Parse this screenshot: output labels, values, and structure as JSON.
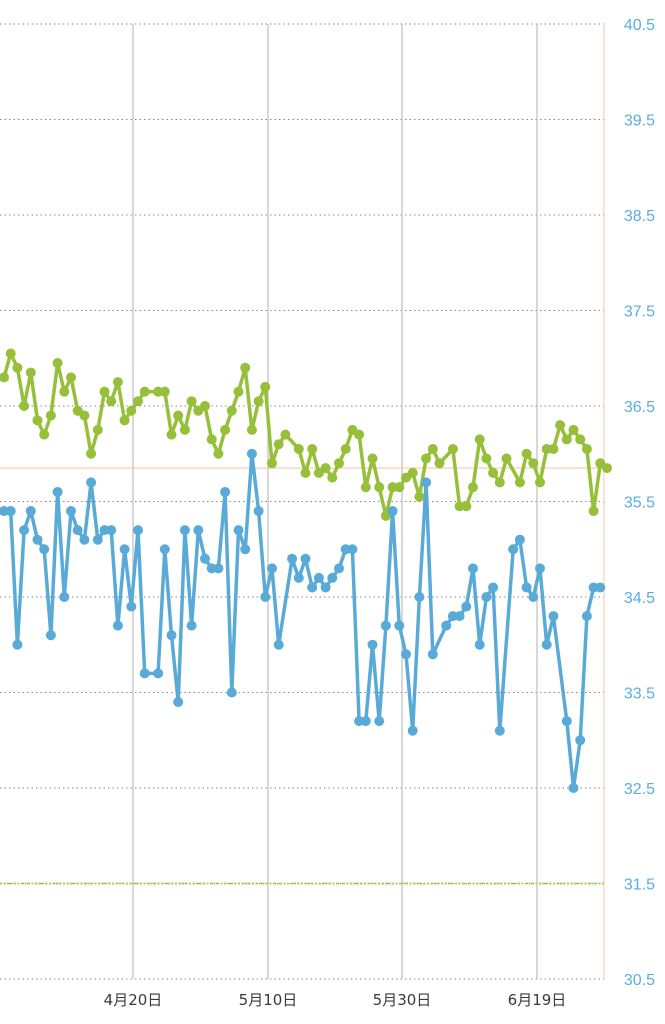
{
  "chart_data": {
    "type": "line",
    "ylim": [
      30.5,
      40.5
    ],
    "y_ticks": [
      "40.5",
      "39.5",
      "38.5",
      "37.5",
      "36.5",
      "35.5",
      "34.5",
      "33.5",
      "32.5",
      "31.5",
      "30.5"
    ],
    "x_ticks": [
      "4月20日",
      "5月10日",
      "5月30日",
      "6月19日"
    ],
    "reference_lines": [
      {
        "value": 35.85,
        "color": "#f5c9a8",
        "style": "solid"
      },
      {
        "value": 31.5,
        "color": "#a9cf57",
        "style": "dashed"
      }
    ],
    "grid": true,
    "legend": "none",
    "series": [
      {
        "color": "#96bf3a",
        "values": [
          [
            0,
            36.8
          ],
          [
            1,
            37.05
          ],
          [
            2,
            36.9
          ],
          [
            3,
            36.5
          ],
          [
            4,
            36.85
          ],
          [
            5,
            36.35
          ],
          [
            6,
            36.2
          ],
          [
            7,
            36.4
          ],
          [
            8,
            36.95
          ],
          [
            9,
            36.65
          ],
          [
            10,
            36.8
          ],
          [
            11,
            36.45
          ],
          [
            12,
            36.4
          ],
          [
            13,
            36.0
          ],
          [
            14,
            36.25
          ],
          [
            15,
            36.65
          ],
          [
            16,
            36.55
          ],
          [
            17,
            36.75
          ],
          [
            18,
            36.35
          ],
          [
            19,
            36.45
          ],
          [
            20,
            36.55
          ],
          [
            21,
            36.65
          ],
          [
            23,
            36.65
          ],
          [
            24,
            36.65
          ],
          [
            25,
            36.2
          ],
          [
            26,
            36.4
          ],
          [
            27,
            36.25
          ],
          [
            28,
            36.55
          ],
          [
            29,
            36.45
          ],
          [
            30,
            36.5
          ],
          [
            31,
            36.15
          ],
          [
            32,
            36.0
          ],
          [
            33,
            36.25
          ],
          [
            34,
            36.45
          ],
          [
            35,
            36.65
          ],
          [
            36,
            36.9
          ],
          [
            37,
            36.25
          ],
          [
            38,
            36.55
          ],
          [
            39,
            36.7
          ],
          [
            40,
            35.9
          ],
          [
            41,
            36.1
          ],
          [
            42,
            36.2
          ],
          [
            44,
            36.05
          ],
          [
            45,
            35.8
          ],
          [
            46,
            36.05
          ],
          [
            47,
            35.8
          ],
          [
            48,
            35.85
          ],
          [
            49,
            35.75
          ],
          [
            50,
            35.9
          ],
          [
            51,
            36.05
          ],
          [
            52,
            36.25
          ],
          [
            53,
            36.2
          ],
          [
            54,
            35.65
          ],
          [
            55,
            35.95
          ],
          [
            56,
            35.65
          ],
          [
            57,
            35.35
          ],
          [
            58,
            35.65
          ],
          [
            59,
            35.65
          ],
          [
            60,
            35.75
          ],
          [
            61,
            35.8
          ],
          [
            62,
            35.55
          ],
          [
            63,
            35.95
          ],
          [
            64,
            36.05
          ],
          [
            65,
            35.9
          ],
          [
            67,
            36.05
          ],
          [
            68,
            35.45
          ],
          [
            69,
            35.45
          ],
          [
            70,
            35.65
          ],
          [
            71,
            36.15
          ],
          [
            72,
            35.95
          ],
          [
            73,
            35.8
          ],
          [
            74,
            35.7
          ],
          [
            75,
            35.95
          ],
          [
            77,
            35.7
          ],
          [
            78,
            36.0
          ],
          [
            79,
            35.9
          ],
          [
            80,
            35.7
          ],
          [
            81,
            36.05
          ],
          [
            82,
            36.05
          ],
          [
            83,
            36.3
          ],
          [
            84,
            36.15
          ],
          [
            85,
            36.25
          ],
          [
            86,
            36.15
          ],
          [
            87,
            36.05
          ],
          [
            88,
            35.4
          ],
          [
            89,
            35.9
          ],
          [
            90,
            35.85
          ]
        ]
      },
      {
        "color": "#5aaad8",
        "values": [
          [
            0,
            35.4
          ],
          [
            1,
            35.4
          ],
          [
            2,
            34.0
          ],
          [
            3,
            35.2
          ],
          [
            4,
            35.4
          ],
          [
            5,
            35.1
          ],
          [
            6,
            35.0
          ],
          [
            7,
            34.1
          ],
          [
            8,
            35.6
          ],
          [
            9,
            34.5
          ],
          [
            10,
            35.4
          ],
          [
            11,
            35.2
          ],
          [
            12,
            35.1
          ],
          [
            13,
            35.7
          ],
          [
            14,
            35.1
          ],
          [
            15,
            35.2
          ],
          [
            16,
            35.2
          ],
          [
            17,
            34.2
          ],
          [
            18,
            35.0
          ],
          [
            19,
            34.4
          ],
          [
            20,
            35.2
          ],
          [
            21,
            33.7
          ],
          [
            23,
            33.7
          ],
          [
            24,
            35.0
          ],
          [
            25,
            34.1
          ],
          [
            26,
            33.4
          ],
          [
            27,
            35.2
          ],
          [
            28,
            34.2
          ],
          [
            29,
            35.2
          ],
          [
            30,
            34.9
          ],
          [
            31,
            34.8
          ],
          [
            32,
            34.8
          ],
          [
            33,
            35.6
          ],
          [
            34,
            33.5
          ],
          [
            35,
            35.2
          ],
          [
            36,
            35.0
          ],
          [
            37,
            36.0
          ],
          [
            38,
            35.4
          ],
          [
            39,
            34.5
          ],
          [
            40,
            34.8
          ],
          [
            41,
            34.0
          ],
          [
            43,
            34.9
          ],
          [
            44,
            34.7
          ],
          [
            45,
            34.9
          ],
          [
            46,
            34.6
          ],
          [
            47,
            34.7
          ],
          [
            48,
            34.6
          ],
          [
            49,
            34.7
          ],
          [
            50,
            34.8
          ],
          [
            51,
            35.0
          ],
          [
            52,
            35.0
          ],
          [
            53,
            33.2
          ],
          [
            54,
            33.2
          ],
          [
            55,
            34.0
          ],
          [
            56,
            33.2
          ],
          [
            57,
            34.2
          ],
          [
            58,
            35.4
          ],
          [
            59,
            34.2
          ],
          [
            60,
            33.9
          ],
          [
            61,
            33.1
          ],
          [
            62,
            34.5
          ],
          [
            63,
            35.7
          ],
          [
            64,
            33.9
          ],
          [
            66,
            34.2
          ],
          [
            67,
            34.3
          ],
          [
            68,
            34.3
          ],
          [
            69,
            34.4
          ],
          [
            70,
            34.8
          ],
          [
            71,
            34.0
          ],
          [
            72,
            34.5
          ],
          [
            73,
            34.6
          ],
          [
            74,
            33.1
          ],
          [
            76,
            35.0
          ],
          [
            77,
            35.1
          ],
          [
            78,
            34.6
          ],
          [
            79,
            34.5
          ],
          [
            80,
            34.8
          ],
          [
            81,
            34.0
          ],
          [
            82,
            34.3
          ],
          [
            84,
            33.2
          ],
          [
            85,
            32.5
          ],
          [
            86,
            33.0
          ],
          [
            87,
            34.3
          ],
          [
            88,
            34.6
          ],
          [
            89,
            34.6
          ]
        ]
      }
    ]
  }
}
